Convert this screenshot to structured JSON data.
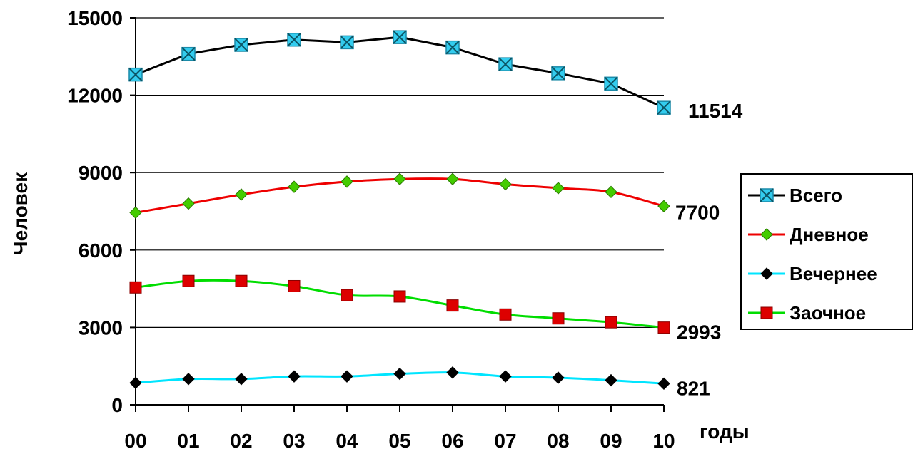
{
  "chart_data": {
    "type": "line",
    "xlabel": "годы",
    "ylabel": "Человек",
    "ylim": [
      0,
      15000
    ],
    "yticks": [
      0,
      3000,
      6000,
      9000,
      12000,
      15000
    ],
    "categories": [
      "00",
      "01",
      "02",
      "03",
      "04",
      "05",
      "06",
      "07",
      "08",
      "09",
      "10"
    ],
    "grid": true,
    "legend_position": "right",
    "series": [
      {
        "name": "Всего",
        "line_color": "#000000",
        "marker": "x-square",
        "marker_color": "#33ccee",
        "values": [
          12800,
          13600,
          13950,
          14150,
          14050,
          14250,
          13850,
          13200,
          12850,
          12450,
          11514
        ],
        "end_label": "11514"
      },
      {
        "name": "Дневное",
        "line_color": "#ee0000",
        "marker": "diamond",
        "marker_color": "#44cc00",
        "values": [
          7450,
          7800,
          8150,
          8450,
          8650,
          8750,
          8750,
          8550,
          8400,
          8250,
          7700
        ],
        "end_label": "7700"
      },
      {
        "name": "Вечернее",
        "line_color": "#00e5ff",
        "marker": "diamond",
        "marker_color": "#000000",
        "values": [
          850,
          1000,
          1000,
          1100,
          1100,
          1200,
          1250,
          1100,
          1050,
          950,
          821
        ],
        "end_label": "821"
      },
      {
        "name": "Заочное",
        "line_color": "#00dd00",
        "marker": "square",
        "marker_color": "#dd0000",
        "values": [
          4550,
          4800,
          4800,
          4600,
          4250,
          4200,
          3850,
          3500,
          3350,
          3200,
          2993
        ],
        "end_label": "2993"
      }
    ]
  }
}
